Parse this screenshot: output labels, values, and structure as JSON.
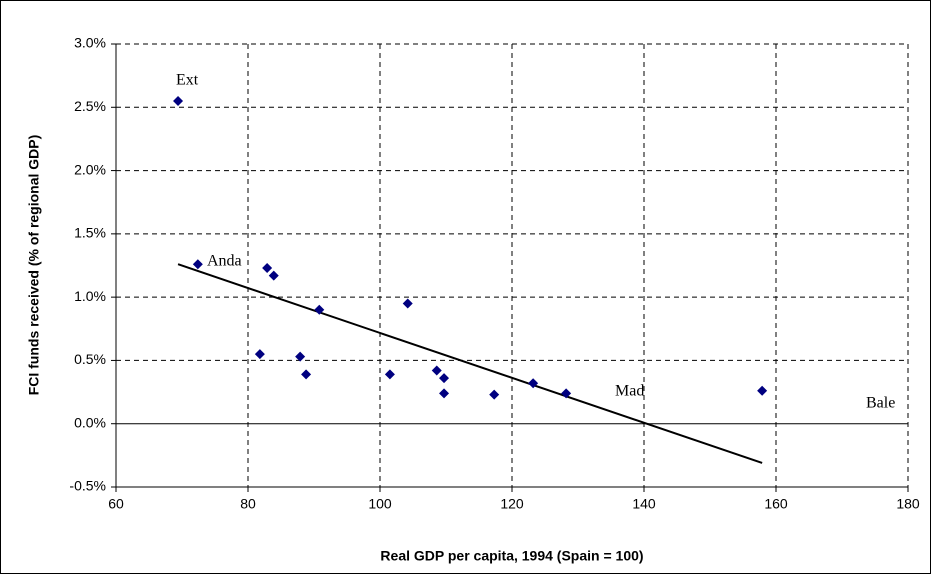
{
  "chart_data": {
    "type": "scatter",
    "xlabel": "Real GDP per capita, 1994 (Spain = 100)",
    "ylabel": "FCI funds received (% of regional GDP)",
    "x": [
      69.4,
      72.4,
      82.9,
      83.9,
      90.8,
      104.2,
      81.8,
      87.9,
      88.8,
      101.5,
      108.6,
      109.7,
      109.7,
      117.3,
      123.2,
      128.2,
      157.9
    ],
    "values": [
      2.55,
      1.26,
      1.23,
      1.17,
      0.9,
      0.95,
      0.55,
      0.53,
      0.39,
      0.39,
      0.42,
      0.36,
      0.24,
      0.23,
      0.32,
      0.24,
      0.26
    ],
    "color": "#000080",
    "trendline": {
      "x": [
        69.4,
        157.9
      ],
      "values": [
        1.26,
        -0.31
      ],
      "color": "#000000"
    },
    "annotations": [
      "Ext",
      "Anda",
      "Mad",
      "Bale"
    ],
    "xlim": [
      60,
      180
    ],
    "xticks": [
      60,
      80,
      100,
      120,
      140,
      160,
      180
    ],
    "ylim": [
      -0.5,
      3.0
    ],
    "yticks": [
      {
        "value": -0.5,
        "label": "-0.5%"
      },
      {
        "value": 0.0,
        "label": "0.0%"
      },
      {
        "value": 0.5,
        "label": "0.5%"
      },
      {
        "value": 1.0,
        "label": "1.0%"
      },
      {
        "value": 1.5,
        "label": "1.5%"
      },
      {
        "value": 2.0,
        "label": "2.0%"
      },
      {
        "value": 2.5,
        "label": "2.5%"
      },
      {
        "value": 3.0,
        "label": "3.0%"
      }
    ],
    "grid": true
  }
}
